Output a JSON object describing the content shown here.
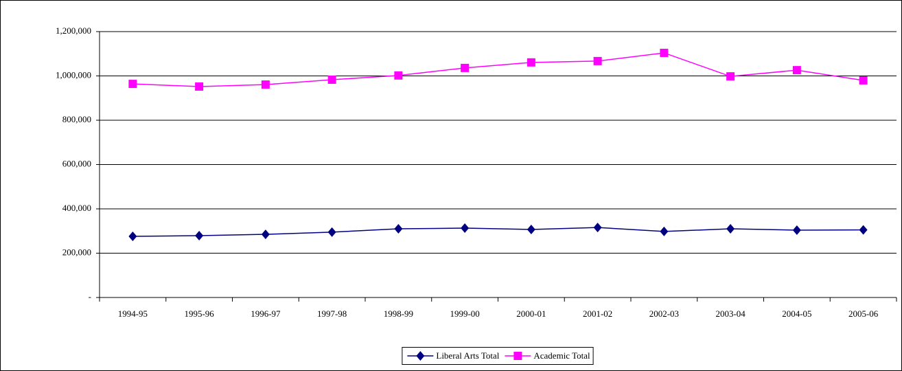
{
  "chart_data": {
    "type": "line",
    "categories": [
      "1994-95",
      "1995-96",
      "1996-97",
      "1997-98",
      "1998-99",
      "1999-00",
      "2000-01",
      "2001-02",
      "2002-03",
      "2003-04",
      "2004-05",
      "2005-06"
    ],
    "series": [
      {
        "name": "Liberal Arts Total",
        "color": "#000080",
        "marker": "diamond",
        "values": [
          276000,
          279000,
          285000,
          295000,
          310000,
          313000,
          307000,
          316000,
          298000,
          310000,
          304000,
          305000
        ]
      },
      {
        "name": "Academic Total",
        "color": "#ff00ff",
        "marker": "square",
        "values": [
          964000,
          952000,
          961000,
          983000,
          1002000,
          1036000,
          1061000,
          1067000,
          1104000,
          998000,
          1026000,
          980000
        ]
      }
    ],
    "ylim": [
      0,
      1200000
    ],
    "yticks": [
      {
        "value": 0,
        "label": "-"
      },
      {
        "value": 200000,
        "label": "200,000"
      },
      {
        "value": 400000,
        "label": "400,000"
      },
      {
        "value": 600000,
        "label": "600,000"
      },
      {
        "value": 800000,
        "label": "800,000"
      },
      {
        "value": 1000000,
        "label": "1,000,000"
      },
      {
        "value": 1200000,
        "label": "1,200,000"
      }
    ],
    "grid": true,
    "legend": "bottom"
  }
}
